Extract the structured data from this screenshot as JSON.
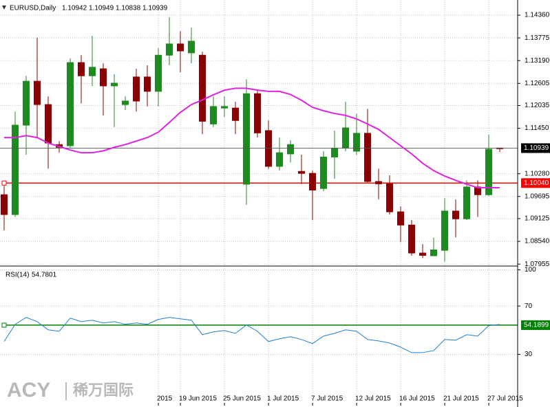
{
  "chart_data": [
    {
      "type": "candlestick",
      "title": "EURUSD,Daily",
      "categories": [
        null,
        null,
        null,
        null,
        null,
        null,
        null,
        null,
        null,
        null,
        null,
        null,
        null,
        null,
        "2015",
        null,
        "19 Jun 2015",
        null,
        null,
        null,
        "25 Jun 2015",
        null,
        null,
        null,
        "1 Jul 2015",
        null,
        null,
        null,
        "7 Jul 2015",
        null,
        null,
        null,
        "12 Jul 2015",
        null,
        null,
        null,
        "16 Jul 2015",
        null,
        null,
        null,
        "21 Jul 2015",
        null,
        null,
        null,
        "27 Jul 2015",
        null
      ],
      "open": [
        1.0974,
        1.0923,
        1.1153,
        1.1266,
        1.1206,
        1.1103,
        1.11,
        1.1314,
        1.128,
        1.1298,
        1.1254,
        1.1206,
        1.1277,
        1.1277,
        1.124,
        1.1333,
        1.1362,
        1.1339,
        1.1333,
        1.1156,
        1.1197,
        1.1197,
        1.1001,
        1.1234,
        1.1139,
        1.1047,
        1.1079,
        1.1034,
        1.1029,
        1.099,
        1.1071,
        1.1094,
        1.1086,
        1.1132,
        1.1008,
        1.1002,
        1.093,
        1.0896,
        1.0824,
        1.0817,
        1.0831,
        1.0932,
        1.0912,
        1.0994,
        1.0974,
        1.10942
      ],
      "high": [
        1.0997,
        1.1188,
        1.128,
        1.1378,
        1.1227,
        1.1112,
        1.1325,
        1.1333,
        1.1383,
        1.1312,
        1.1284,
        1.1227,
        1.1298,
        1.1307,
        1.1351,
        1.1431,
        1.1395,
        1.1404,
        1.1342,
        1.1227,
        1.1227,
        1.1213,
        1.1271,
        1.1245,
        1.1165,
        1.1121,
        1.1114,
        1.1077,
        1.1036,
        1.1086,
        1.1139,
        1.1213,
        1.1183,
        1.1195,
        1.1041,
        1.1024,
        1.0944,
        1.0909,
        1.0847,
        1.0864,
        1.0965,
        1.0962,
        1.1011,
        1.1011,
        1.1128,
        1.10949
      ],
      "low": [
        1.0882,
        1.0917,
        1.1077,
        1.1121,
        1.1041,
        1.1082,
        1.1094,
        1.1209,
        1.1254,
        1.1178,
        1.1148,
        1.1192,
        1.1188,
        1.1201,
        1.1201,
        1.1307,
        1.1289,
        1.1312,
        1.113,
        1.1148,
        1.1174,
        1.113,
        1.0948,
        1.1121,
        1.1041,
        1.1036,
        1.1057,
        1.1001,
        1.0909,
        1.0983,
        1.1015,
        1.1086,
        1.1077,
        1.1006,
        1.0962,
        1.0923,
        1.0852,
        1.0817,
        1.0811,
        1.0817,
        1.0802,
        1.0864,
        1.0909,
        1.0917,
        1.0971,
        1.10838
      ],
      "close": [
        1.0923,
        1.1153,
        1.1266,
        1.1206,
        1.1107,
        1.1096,
        1.1314,
        1.128,
        1.1302,
        1.1254,
        1.1261,
        1.1215,
        1.1215,
        1.124,
        1.1333,
        1.1362,
        1.1344,
        1.1369,
        1.1163,
        1.1201,
        1.1201,
        1.1165,
        1.1234,
        1.1133,
        1.1047,
        1.1082,
        1.1103,
        1.1029,
        1.0986,
        1.1071,
        1.1094,
        1.1146,
        1.1132,
        1.1008,
        1.1002,
        1.093,
        1.0896,
        1.0824,
        1.0818,
        1.0832,
        1.0932,
        1.0912,
        1.0994,
        1.0974,
        1.1091,
        1.10939
      ],
      "up_color": "#1f8a1f",
      "down_color": "#8b0000",
      "series": [
        {
          "color": "#e020e0",
          "values": [
            1.1121,
            1.1121,
            1.1126,
            1.1121,
            1.1107,
            1.1098,
            1.1089,
            1.1082,
            1.1082,
            1.1087,
            1.1096,
            1.1103,
            1.1112,
            1.1121,
            1.1135,
            1.116,
            1.1186,
            1.1206,
            1.1218,
            1.1231,
            1.1243,
            1.1248,
            1.1248,
            1.1243,
            1.124,
            1.124,
            1.1232,
            1.1217,
            1.1199,
            1.119,
            1.1183,
            1.1178,
            1.1169,
            1.1156,
            1.1142,
            1.1121,
            1.11,
            1.1079,
            1.1055,
            1.1036,
            1.1022,
            1.1011,
            1.1001,
            1.0992,
            1.0992,
            1.0992
          ]
        }
      ],
      "hlines": [
        {
          "value": 1.1004,
          "label": "1.10040",
          "color": "#ff0000"
        }
      ],
      "ylim": [
        1.0794,
        1.1475
      ],
      "yticks": [
        {
          "value": 1.1436,
          "label": "1.14360"
        },
        {
          "value": 1.13775,
          "label": "1.13775"
        },
        {
          "value": 1.1319,
          "label": "1.13190"
        },
        {
          "value": 1.12605,
          "label": "1.12605"
        },
        {
          "value": 1.12035,
          "label": "1.12035"
        },
        {
          "value": 1.1145,
          "label": "1.11450"
        },
        {
          "value": 1.1028,
          "label": "1.10280"
        },
        {
          "value": 1.09695,
          "label": "1.09695"
        },
        {
          "value": 1.09125,
          "label": "1.09125"
        },
        {
          "value": 1.0854,
          "label": "1.08540"
        },
        {
          "value": 1.07955,
          "label": "1.07955"
        }
      ],
      "grid": true
    },
    {
      "type": "line",
      "title": "RSI(14)",
      "series": [
        {
          "color": "#1e7fd0",
          "values": [
            40.6,
            54.9,
            60.6,
            57.1,
            50.3,
            49.1,
            60.0,
            57.1,
            58.3,
            56.0,
            57.1,
            54.9,
            56.0,
            54.9,
            58.9,
            60.6,
            59.4,
            58.3,
            46.3,
            48.6,
            49.7,
            47.4,
            54.3,
            49.1,
            40.6,
            42.9,
            44.6,
            42.3,
            38.9,
            45.1,
            47.4,
            50.3,
            49.1,
            42.3,
            41.1,
            39.4,
            36.0,
            31.4,
            31.4,
            33.1,
            42.3,
            41.7,
            46.3,
            45.1,
            53.7,
            54.7801
          ]
        }
      ],
      "hlines": [
        {
          "value": 54.1899,
          "color": "#008000"
        }
      ],
      "ylim": [
        -12.5,
        102
      ],
      "yticks": [
        100,
        70,
        30
      ],
      "grid": true
    }
  ],
  "watermark": {
    "brand": "ACY",
    "name": "稀万国际"
  }
}
